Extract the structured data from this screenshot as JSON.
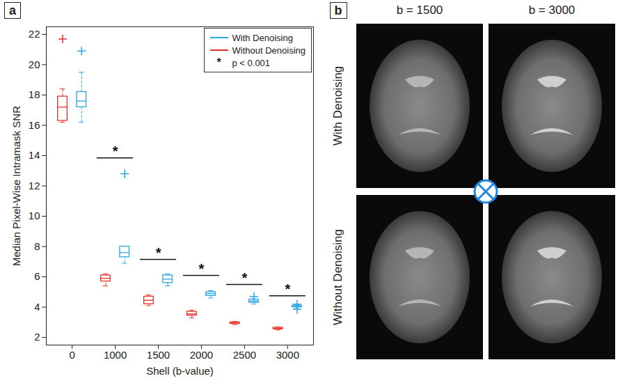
{
  "chart_data": {
    "type": "box",
    "panel_label": "a",
    "xlabel": "Shell (b-value)",
    "ylabel": "Median Pixel-Wise Intramask SNR",
    "categories": [
      "0",
      "1000",
      "1500",
      "2000",
      "2500",
      "3000"
    ],
    "series": [
      {
        "name": "With Denoising",
        "color": "#2aa6e2",
        "boxes": [
          {
            "whislo": 16.2,
            "q1": 17.2,
            "med": 17.6,
            "q3": 18.2,
            "whishi": 19.5,
            "fliers": [
              20.9
            ]
          },
          {
            "whislo": 6.9,
            "q1": 7.3,
            "med": 7.6,
            "q3": 8.0,
            "whishi": 8.0,
            "fliers": [
              12.8
            ]
          },
          {
            "whislo": 5.4,
            "q1": 5.6,
            "med": 5.85,
            "q3": 6.1,
            "whishi": 6.2,
            "fliers": []
          },
          {
            "whislo": 4.6,
            "q1": 4.75,
            "med": 4.9,
            "q3": 5.0,
            "whishi": 5.1,
            "fliers": []
          },
          {
            "whislo": 4.2,
            "q1": 4.3,
            "med": 4.4,
            "q3": 4.5,
            "whishi": 4.55,
            "fliers": [
              4.7
            ]
          },
          {
            "whislo": 3.95,
            "q1": 4.0,
            "med": 4.05,
            "q3": 4.1,
            "whishi": 4.15,
            "fliers": [
              3.85,
              4.2
            ]
          }
        ]
      },
      {
        "name": "Without Denoising",
        "color": "#e8302a",
        "boxes": [
          {
            "whislo": 16.2,
            "q1": 16.3,
            "med": 17.2,
            "q3": 17.9,
            "whishi": 18.4,
            "fliers": [
              21.7
            ]
          },
          {
            "whislo": 5.4,
            "q1": 5.7,
            "med": 5.9,
            "q3": 6.1,
            "whishi": 6.2,
            "fliers": []
          },
          {
            "whislo": 4.1,
            "q1": 4.2,
            "med": 4.45,
            "q3": 4.7,
            "whishi": 4.8,
            "fliers": []
          },
          {
            "whislo": 3.3,
            "q1": 3.45,
            "med": 3.55,
            "q3": 3.7,
            "whishi": 3.8,
            "fliers": []
          },
          {
            "whislo": 2.85,
            "q1": 2.9,
            "med": 2.95,
            "q3": 3.0,
            "whishi": 3.05,
            "fliers": []
          },
          {
            "whislo": 2.5,
            "q1": 2.55,
            "med": 2.6,
            "q3": 2.65,
            "whishi": 2.7,
            "fliers": []
          }
        ]
      }
    ],
    "annotations": [
      {
        "category": "1000",
        "y": 13.85,
        "text": "*"
      },
      {
        "category": "1500",
        "y": 7.15,
        "text": "*"
      },
      {
        "category": "2000",
        "y": 6.1,
        "text": "*"
      },
      {
        "category": "2500",
        "y": 5.5,
        "text": "*"
      },
      {
        "category": "3000",
        "y": 4.75,
        "text": "*"
      }
    ],
    "significance_key": {
      "text": "*",
      "label": "p < 0.001"
    },
    "ylim": [
      1.5,
      22.5
    ],
    "yticks": [
      2,
      4,
      6,
      8,
      10,
      12,
      14,
      16,
      18,
      20,
      22
    ],
    "grid": false,
    "legend": "upper right"
  },
  "panel_b": {
    "label": "b",
    "columns": [
      "b = 1500",
      "b = 3000"
    ],
    "rows": [
      "With Denoising",
      "Without Denoising"
    ]
  }
}
